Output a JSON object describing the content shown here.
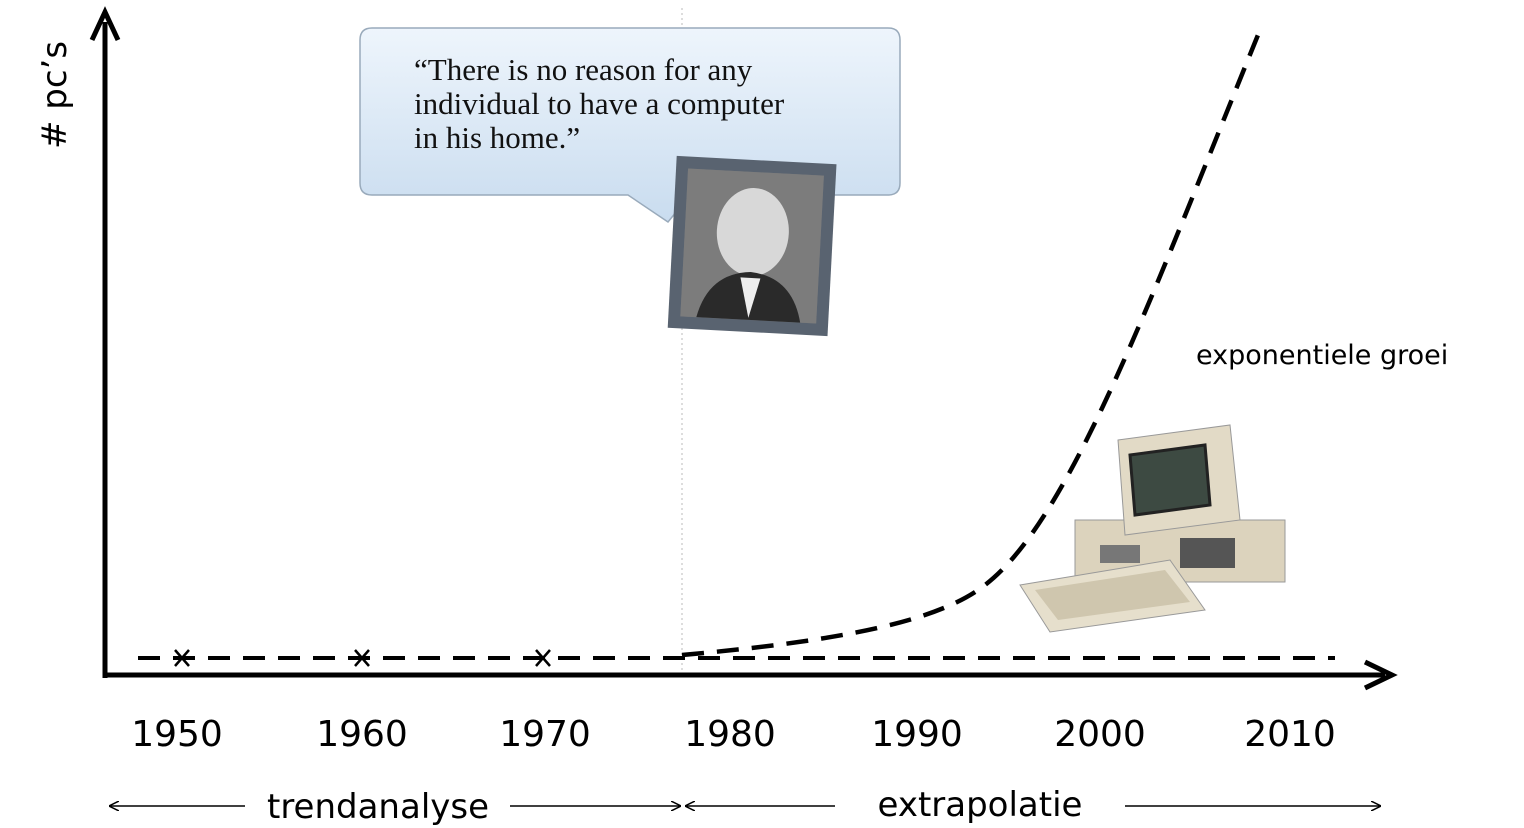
{
  "axes": {
    "y_label": "# pc’s",
    "x_labels": [
      "1950",
      "1960",
      "1970",
      "1980",
      "1990",
      "2000",
      "2010"
    ]
  },
  "quote": {
    "lines": [
      "“There is no reason for any",
      "individual to have a computer",
      "in his home.”"
    ]
  },
  "curve_label": "exponentiele groei",
  "phases": [
    "trendanalyse",
    "extrapolatie"
  ]
}
